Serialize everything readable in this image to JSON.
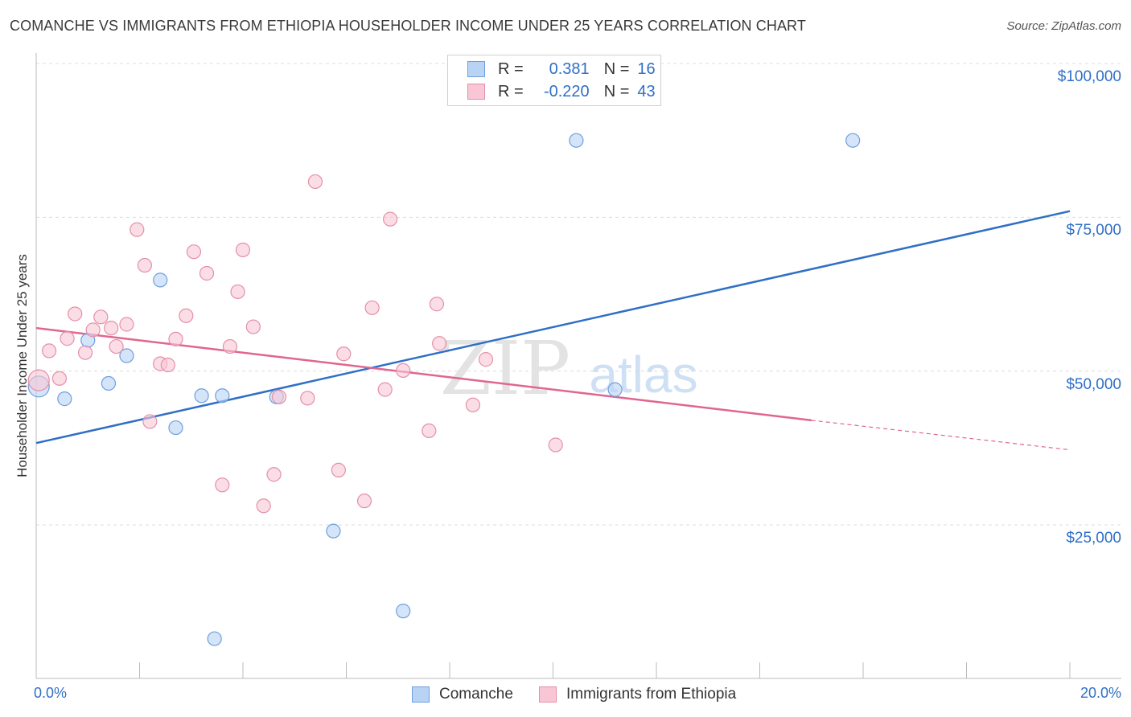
{
  "title": "COMANCHE VS IMMIGRANTS FROM ETHIOPIA HOUSEHOLDER INCOME UNDER 25 YEARS CORRELATION CHART",
  "source": "Source: ZipAtlas.com",
  "watermark": {
    "zip": "ZIP",
    "atlas": "atlas"
  },
  "colors": {
    "blue": "#2f6fc6",
    "blue_fill": "#b9d3f5",
    "pink": "#e0668f",
    "pink_fill": "#f9c6d5"
  },
  "legend": {
    "rows": [
      {
        "r_label": "R =",
        "r_value": "0.381",
        "n_label": "N =",
        "n_value": "16"
      },
      {
        "r_label": "R =",
        "r_value": "-0.220",
        "n_label": "N =",
        "n_value": "43"
      }
    ]
  },
  "chart_data": {
    "type": "scatter",
    "title": "COMANCHE VS IMMIGRANTS FROM ETHIOPIA HOUSEHOLDER INCOME UNDER 25 YEARS CORRELATION CHART",
    "ylabel": "Householder Income Under 25 years",
    "xlabel": "",
    "x_tick_labels": {
      "min": "0.0%",
      "max": "20.0%"
    },
    "y_tick_labels": [
      "$100,000",
      "$75,000",
      "$50,000",
      "$25,000"
    ],
    "y_ticks": [
      100000,
      75000,
      50000,
      25000
    ],
    "xlim": [
      0,
      20
    ],
    "ylim": [
      0,
      102500
    ],
    "series": [
      {
        "name": "Comanche",
        "color": "blue",
        "points": [
          {
            "x": 0.05,
            "y": 47500
          },
          {
            "x": 0.55,
            "y": 45500
          },
          {
            "x": 1.0,
            "y": 55000
          },
          {
            "x": 1.4,
            "y": 48000
          },
          {
            "x": 1.75,
            "y": 52500
          },
          {
            "x": 2.4,
            "y": 64800
          },
          {
            "x": 2.7,
            "y": 40800
          },
          {
            "x": 3.2,
            "y": 46000
          },
          {
            "x": 3.6,
            "y": 46000
          },
          {
            "x": 4.65,
            "y": 45800
          },
          {
            "x": 5.75,
            "y": 24000
          },
          {
            "x": 7.1,
            "y": 11000
          },
          {
            "x": 3.45,
            "y": 6500
          },
          {
            "x": 10.45,
            "y": 87500
          },
          {
            "x": 15.8,
            "y": 87500
          },
          {
            "x": 11.2,
            "y": 47000
          }
        ],
        "trend": {
          "x": [
            0,
            20
          ],
          "y": [
            38300,
            76000
          ]
        }
      },
      {
        "name": "Immigrants from Ethiopia",
        "color": "pink",
        "points": [
          {
            "x": 0.05,
            "y": 48500
          },
          {
            "x": 0.25,
            "y": 53300
          },
          {
            "x": 0.45,
            "y": 48800
          },
          {
            "x": 0.6,
            "y": 55300
          },
          {
            "x": 0.75,
            "y": 59300
          },
          {
            "x": 0.95,
            "y": 53000
          },
          {
            "x": 1.1,
            "y": 56700
          },
          {
            "x": 1.25,
            "y": 58800
          },
          {
            "x": 1.45,
            "y": 57000
          },
          {
            "x": 1.55,
            "y": 54000
          },
          {
            "x": 1.75,
            "y": 57600
          },
          {
            "x": 1.95,
            "y": 73000
          },
          {
            "x": 2.1,
            "y": 67200
          },
          {
            "x": 2.2,
            "y": 41800
          },
          {
            "x": 2.4,
            "y": 51200
          },
          {
            "x": 2.55,
            "y": 51000
          },
          {
            "x": 2.7,
            "y": 55200
          },
          {
            "x": 2.9,
            "y": 59000
          },
          {
            "x": 3.05,
            "y": 69400
          },
          {
            "x": 3.3,
            "y": 65900
          },
          {
            "x": 3.6,
            "y": 31500
          },
          {
            "x": 3.75,
            "y": 54000
          },
          {
            "x": 3.9,
            "y": 62900
          },
          {
            "x": 4.0,
            "y": 69700
          },
          {
            "x": 4.2,
            "y": 57200
          },
          {
            "x": 4.4,
            "y": 28100
          },
          {
            "x": 4.6,
            "y": 33200
          },
          {
            "x": 4.7,
            "y": 45800
          },
          {
            "x": 5.25,
            "y": 45600
          },
          {
            "x": 5.4,
            "y": 80800
          },
          {
            "x": 5.85,
            "y": 33900
          },
          {
            "x": 5.95,
            "y": 52800
          },
          {
            "x": 6.35,
            "y": 28900
          },
          {
            "x": 6.5,
            "y": 60300
          },
          {
            "x": 6.75,
            "y": 47000
          },
          {
            "x": 6.85,
            "y": 74700
          },
          {
            "x": 7.1,
            "y": 50100
          },
          {
            "x": 7.6,
            "y": 40300
          },
          {
            "x": 7.75,
            "y": 60900
          },
          {
            "x": 7.8,
            "y": 54500
          },
          {
            "x": 8.45,
            "y": 44500
          },
          {
            "x": 8.7,
            "y": 51900
          },
          {
            "x": 10.05,
            "y": 38000
          }
        ],
        "trend": {
          "x": [
            0,
            15.0
          ],
          "y": [
            57000,
            42000
          ]
        },
        "trend_dashed": {
          "x": [
            15.0,
            20
          ],
          "y": [
            42000,
            37200
          ]
        }
      }
    ]
  },
  "bottom_legend": [
    "Comanche",
    "Immigrants from Ethiopia"
  ]
}
